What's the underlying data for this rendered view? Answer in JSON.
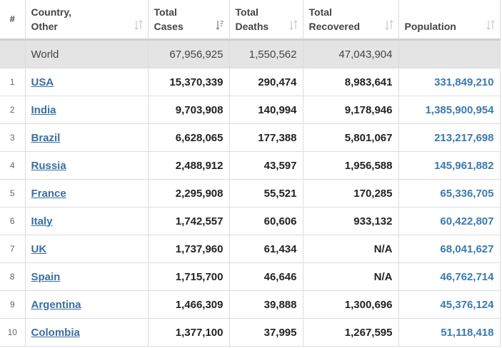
{
  "colors": {
    "link": "#3a6fa0",
    "population": "#3a7ab0",
    "world_row_bg": "#e4e4e4",
    "border": "#dddddd"
  },
  "headers": {
    "rank": "#",
    "country": "Country,\nOther",
    "cases": "Total\nCases",
    "deaths": "Total\nDeaths",
    "recovered": "Total\nRecovered",
    "population": "Population"
  },
  "sort_icons": {
    "country": "sort-icon",
    "cases": "sort-desc-active-icon",
    "deaths": "sort-icon",
    "recovered": "sort-icon",
    "population": "sort-icon"
  },
  "world": {
    "name": "World",
    "cases": "67,956,925",
    "deaths": "1,550,562",
    "recovered": "47,043,904",
    "population": ""
  },
  "rows": [
    {
      "rank": "1",
      "country": "USA",
      "cases": "15,370,339",
      "deaths": "290,474",
      "recovered": "8,983,641",
      "population": "331,849,210"
    },
    {
      "rank": "2",
      "country": "India",
      "cases": "9,703,908",
      "deaths": "140,994",
      "recovered": "9,178,946",
      "population": "1,385,900,954"
    },
    {
      "rank": "3",
      "country": "Brazil",
      "cases": "6,628,065",
      "deaths": "177,388",
      "recovered": "5,801,067",
      "population": "213,217,698"
    },
    {
      "rank": "4",
      "country": "Russia",
      "cases": "2,488,912",
      "deaths": "43,597",
      "recovered": "1,956,588",
      "population": "145,961,882"
    },
    {
      "rank": "5",
      "country": "France",
      "cases": "2,295,908",
      "deaths": "55,521",
      "recovered": "170,285",
      "population": "65,336,705"
    },
    {
      "rank": "6",
      "country": "Italy",
      "cases": "1,742,557",
      "deaths": "60,606",
      "recovered": "933,132",
      "population": "60,422,807"
    },
    {
      "rank": "7",
      "country": "UK",
      "cases": "1,737,960",
      "deaths": "61,434",
      "recovered": "N/A",
      "population": "68,041,627"
    },
    {
      "rank": "8",
      "country": "Spain",
      "cases": "1,715,700",
      "deaths": "46,646",
      "recovered": "N/A",
      "population": "46,762,714"
    },
    {
      "rank": "9",
      "country": "Argentina",
      "cases": "1,466,309",
      "deaths": "39,888",
      "recovered": "1,300,696",
      "population": "45,376,124"
    },
    {
      "rank": "10",
      "country": "Colombia",
      "cases": "1,377,100",
      "deaths": "37,995",
      "recovered": "1,267,595",
      "population": "51,118,418"
    }
  ]
}
